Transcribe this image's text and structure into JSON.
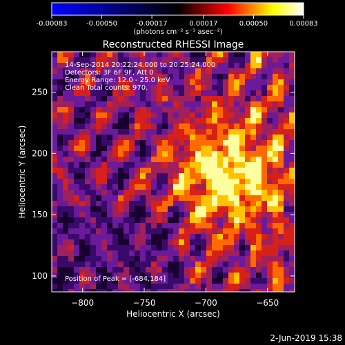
{
  "colorbar": {
    "ticks": [
      {
        "value": -0.00083,
        "label": "-0.00083"
      },
      {
        "value": -0.0005,
        "label": "-0.00050"
      },
      {
        "value": -0.00017,
        "label": "-0.00017"
      },
      {
        "value": 0.00017,
        "label": "0.00017"
      },
      {
        "value": 0.0005,
        "label": "0.00050"
      },
      {
        "value": 0.00083,
        "label": "0.00083"
      }
    ],
    "range": [
      -0.00083,
      0.00083
    ],
    "units_label": "(photons cm⁻² s⁻¹ asec⁻²)",
    "colors": [
      "#0000ff",
      "#000000",
      "#ff0000",
      "#ffff00",
      "#ffffff"
    ]
  },
  "chart_data": {
    "type": "heatmap",
    "title": "Reconstructed RHESSI Image",
    "xlabel": "Heliocentric X (arcsec)",
    "ylabel": "Heliocentric Y (arcsec)",
    "xlim": [
      -825,
      -628
    ],
    "ylim": [
      87,
      283
    ],
    "xticks": [
      {
        "value": -800,
        "label": "−800"
      },
      {
        "value": -750,
        "label": "−750"
      },
      {
        "value": -700,
        "label": "−700"
      },
      {
        "value": -650,
        "label": "−650"
      }
    ],
    "yticks": [
      {
        "value": 100,
        "label": "100"
      },
      {
        "value": 150,
        "label": "150"
      },
      {
        "value": 200,
        "label": "200"
      },
      {
        "value": 250,
        "label": "250"
      }
    ],
    "peak": {
      "x": -684,
      "y": 184
    },
    "colormap": [
      "#1a0030",
      "#3a0a6a",
      "#6a1a9a",
      "#a0205a",
      "#d8201a",
      "#ff6a00",
      "#ffc400",
      "#ffffa0"
    ]
  },
  "annotations": [
    "14-Sep-2014 20:22:24.000 to 20:25:24.000",
    "Detectors: 3F 6F 9F, Att 0",
    "Energy Range: 12.0 - 25.0 keV",
    "Clean     Total counts: 970."
  ],
  "peak_label": "Position of Peak = [-684,184]",
  "footer_date": "2-Jun-2019 15:38"
}
